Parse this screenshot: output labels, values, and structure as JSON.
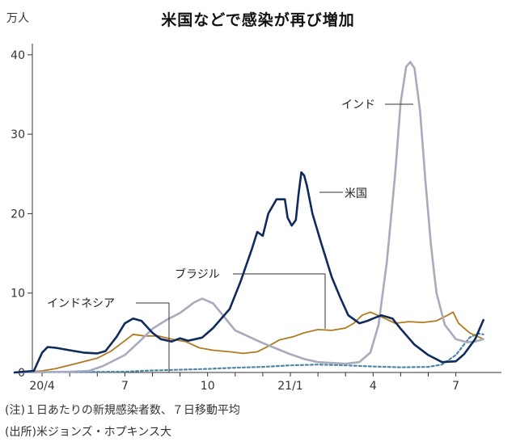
{
  "header": {
    "title": "米国などで感染が再び増加",
    "unit": "万人"
  },
  "notes": {
    "note": "(注)１日あたりの新規感染者数、７日移動平均",
    "source": "(出所)米ジョンズ・ホプキンス大"
  },
  "colors": {
    "us": "#0f2a5c",
    "india": "#a7abbd",
    "brazil": "#b07a1e",
    "indonesia": "#4e86ac",
    "axis": "#333333"
  },
  "chart_data": {
    "type": "line",
    "x_unit": "month index (0 = 2020/3, 1 = 2020/4, ...)",
    "x_tick_labels": [
      {
        "x": 1,
        "label": "20/4"
      },
      {
        "x": 4,
        "label": "7"
      },
      {
        "x": 7,
        "label": "10"
      },
      {
        "x": 10,
        "label": "21/1"
      },
      {
        "x": 13,
        "label": "4"
      },
      {
        "x": 16,
        "label": "7"
      }
    ],
    "y_tick_labels": [
      {
        "y": 0,
        "label": "0"
      },
      {
        "y": 10,
        "label": "10"
      },
      {
        "y": 20,
        "label": "20"
      },
      {
        "y": 30,
        "label": "30"
      },
      {
        "y": 40,
        "label": "40"
      }
    ],
    "xlim": [
      0,
      17.1
    ],
    "ylim": [
      0,
      41
    ],
    "series": [
      {
        "name": "米国",
        "key": "us",
        "points": [
          [
            0,
            0
          ],
          [
            0.7,
            0.2
          ],
          [
            1,
            2.5
          ],
          [
            1.2,
            3.2
          ],
          [
            1.5,
            3.1
          ],
          [
            2,
            2.8
          ],
          [
            2.5,
            2.5
          ],
          [
            3,
            2.4
          ],
          [
            3.3,
            2.7
          ],
          [
            3.7,
            4.5
          ],
          [
            4,
            6.2
          ],
          [
            4.3,
            6.8
          ],
          [
            4.6,
            6.5
          ],
          [
            5,
            5
          ],
          [
            5.3,
            4.2
          ],
          [
            5.7,
            3.9
          ],
          [
            6,
            4.3
          ],
          [
            6.3,
            4.0
          ],
          [
            6.8,
            4.4
          ],
          [
            7.2,
            5.6
          ],
          [
            7.8,
            8.0
          ],
          [
            8.2,
            11.5
          ],
          [
            8.6,
            15.5
          ],
          [
            8.8,
            17.7
          ],
          [
            9,
            17.2
          ],
          [
            9.2,
            20
          ],
          [
            9.5,
            21.8
          ],
          [
            9.8,
            21.8
          ],
          [
            9.9,
            19.5
          ],
          [
            10.05,
            18.5
          ],
          [
            10.2,
            19.2
          ],
          [
            10.3,
            22.5
          ],
          [
            10.4,
            25.2
          ],
          [
            10.5,
            24.8
          ],
          [
            10.6,
            23.5
          ],
          [
            10.8,
            20
          ],
          [
            11.1,
            16.5
          ],
          [
            11.5,
            12
          ],
          [
            11.8,
            9.5
          ],
          [
            12.1,
            7.2
          ],
          [
            12.5,
            6.2
          ],
          [
            12.8,
            6.5
          ],
          [
            13,
            6.8
          ],
          [
            13.3,
            7.2
          ],
          [
            13.7,
            6.8
          ],
          [
            14,
            5.5
          ],
          [
            14.5,
            3.5
          ],
          [
            15,
            2.2
          ],
          [
            15.5,
            1.3
          ],
          [
            16,
            1.4
          ],
          [
            16.3,
            2.3
          ],
          [
            16.7,
            4.2
          ],
          [
            17,
            6.6
          ]
        ]
      },
      {
        "name": "インド",
        "key": "india",
        "points": [
          [
            0,
            0
          ],
          [
            1,
            0.05
          ],
          [
            2,
            0.1
          ],
          [
            2.7,
            0.2
          ],
          [
            3.2,
            0.8
          ],
          [
            4,
            2.2
          ],
          [
            4.5,
            3.8
          ],
          [
            5,
            5.5
          ],
          [
            5.5,
            6.6
          ],
          [
            6,
            7.5
          ],
          [
            6.5,
            8.8
          ],
          [
            6.8,
            9.3
          ],
          [
            7.2,
            8.7
          ],
          [
            7.6,
            7.0
          ],
          [
            8,
            5.3
          ],
          [
            8.5,
            4.5
          ],
          [
            9,
            3.7
          ],
          [
            9.5,
            3.0
          ],
          [
            10,
            2.3
          ],
          [
            10.5,
            1.7
          ],
          [
            11,
            1.3
          ],
          [
            11.5,
            1.2
          ],
          [
            12,
            1.1
          ],
          [
            12.5,
            1.3
          ],
          [
            12.9,
            2.5
          ],
          [
            13.2,
            6
          ],
          [
            13.5,
            14
          ],
          [
            13.8,
            25
          ],
          [
            14,
            34
          ],
          [
            14.2,
            38.5
          ],
          [
            14.35,
            39.1
          ],
          [
            14.5,
            38.3
          ],
          [
            14.7,
            33
          ],
          [
            14.9,
            24
          ],
          [
            15.1,
            16
          ],
          [
            15.3,
            10
          ],
          [
            15.6,
            6
          ],
          [
            16,
            4.2
          ],
          [
            16.4,
            3.8
          ],
          [
            16.7,
            3.9
          ],
          [
            17,
            4.2
          ]
        ]
      },
      {
        "name": "ブラジル",
        "key": "brazil",
        "points": [
          [
            0,
            0
          ],
          [
            1,
            0.2
          ],
          [
            1.5,
            0.5
          ],
          [
            2.2,
            1.1
          ],
          [
            3,
            1.8
          ],
          [
            3.5,
            2.7
          ],
          [
            4,
            4.0
          ],
          [
            4.3,
            4.8
          ],
          [
            4.7,
            4.6
          ],
          [
            5.2,
            4.6
          ],
          [
            5.7,
            4.2
          ],
          [
            6.2,
            3.9
          ],
          [
            6.7,
            3.1
          ],
          [
            7.2,
            2.8
          ],
          [
            7.8,
            2.6
          ],
          [
            8.3,
            2.4
          ],
          [
            8.8,
            2.6
          ],
          [
            9.2,
            3.3
          ],
          [
            9.6,
            4.1
          ],
          [
            10.1,
            4.5
          ],
          [
            10.5,
            5.0
          ],
          [
            11,
            5.4
          ],
          [
            11.5,
            5.3
          ],
          [
            12,
            5.6
          ],
          [
            12.3,
            6.2
          ],
          [
            12.6,
            7.2
          ],
          [
            12.9,
            7.6
          ],
          [
            13.3,
            7.0
          ],
          [
            13.8,
            6.2
          ],
          [
            14.3,
            6.4
          ],
          [
            14.8,
            6.3
          ],
          [
            15.3,
            6.5
          ],
          [
            15.7,
            7.2
          ],
          [
            15.9,
            7.6
          ],
          [
            16.1,
            6.2
          ],
          [
            16.5,
            5.0
          ],
          [
            17,
            4.2
          ]
        ]
      },
      {
        "name": "インドネシア",
        "key": "indonesia",
        "dash": true,
        "points": [
          [
            0,
            0
          ],
          [
            2,
            0.05
          ],
          [
            4,
            0.1
          ],
          [
            5,
            0.25
          ],
          [
            6,
            0.35
          ],
          [
            7,
            0.45
          ],
          [
            8,
            0.6
          ],
          [
            9,
            0.7
          ],
          [
            10,
            0.9
          ],
          [
            11,
            1.0
          ],
          [
            12,
            0.9
          ],
          [
            13,
            0.75
          ],
          [
            14,
            0.65
          ],
          [
            15,
            0.7
          ],
          [
            15.5,
            1.0
          ],
          [
            16,
            2.2
          ],
          [
            16.5,
            4.4
          ],
          [
            16.8,
            4.9
          ],
          [
            17,
            4.8
          ]
        ]
      }
    ],
    "labels": [
      {
        "text": "インド",
        "key": "india"
      },
      {
        "text": "米国",
        "key": "us"
      },
      {
        "text": "ブラジル",
        "key": "brazil"
      },
      {
        "text": "インドネシア",
        "key": "indonesia"
      }
    ]
  }
}
